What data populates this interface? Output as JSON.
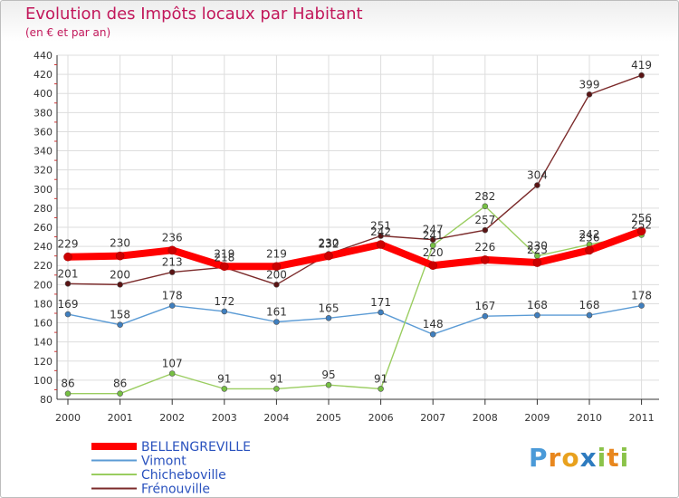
{
  "header": {
    "title": "Evolution des Impôts locaux par Habitant",
    "subtitle": "(en € et par an)"
  },
  "brand": {
    "letters": [
      "P",
      "r",
      "o",
      "x",
      "i",
      "t",
      "i"
    ],
    "colors": [
      "#4a9ad8",
      "#e8871e",
      "#e8a11e",
      "#2e7bbf",
      "#8bc34a",
      "#e8871e",
      "#8bc34a"
    ]
  },
  "chart_data": {
    "type": "line",
    "title": "Evolution des Impôts locaux par Habitant",
    "subtitle": "(en € et par an)",
    "x": [
      "2000",
      "2001",
      "2002",
      "2003",
      "2004",
      "2005",
      "2006",
      "2007",
      "2008",
      "2009",
      "2010",
      "2011"
    ],
    "ylim": [
      80,
      440
    ],
    "yticks": [
      80,
      100,
      120,
      140,
      160,
      180,
      200,
      220,
      240,
      260,
      280,
      300,
      320,
      340,
      360,
      380,
      400,
      420,
      440
    ],
    "grid": true,
    "legend_position": "bottom-left",
    "series": [
      {
        "name": "BELLENGREVILLE",
        "color": "#ff0000",
        "marker": "#cc0000",
        "values": [
          229,
          230,
          236,
          219,
          219,
          230,
          242,
          220,
          226,
          223,
          236,
          256
        ],
        "labels": [
          "229",
          "230",
          "236",
          "219",
          "219",
          "230",
          "242",
          "220",
          "226",
          "223",
          "236",
          "256"
        ]
      },
      {
        "name": "Vimont",
        "color": "#5b9bd5",
        "marker": "#3f7fbf",
        "values": [
          169,
          158,
          178,
          172,
          161,
          165,
          171,
          148,
          167,
          168,
          168,
          178
        ],
        "labels": [
          "169",
          "158",
          "178",
          "172",
          "161",
          "165",
          "171",
          "148",
          "167",
          "168",
          "168",
          "178"
        ]
      },
      {
        "name": "Chicheboville",
        "color": "#9acd60",
        "marker": "#76c043",
        "values": [
          86,
          86,
          107,
          91,
          91,
          95,
          91,
          241,
          282,
          230,
          242,
          252
        ],
        "labels": [
          "86",
          "86",
          "107",
          "91",
          "91",
          "95",
          "91",
          "241",
          "282",
          "230",
          "242",
          "252"
        ]
      },
      {
        "name": "Frénouville",
        "color": "#7b2a2a",
        "marker": "#5a1414",
        "values": [
          201,
          200,
          213,
          218,
          200,
          232,
          251,
          247,
          257,
          304,
          399,
          419
        ],
        "labels": [
          "201",
          "200",
          "213",
          "218",
          "200",
          "232",
          "251",
          "247",
          "257",
          "304",
          "399",
          "419"
        ]
      }
    ]
  }
}
